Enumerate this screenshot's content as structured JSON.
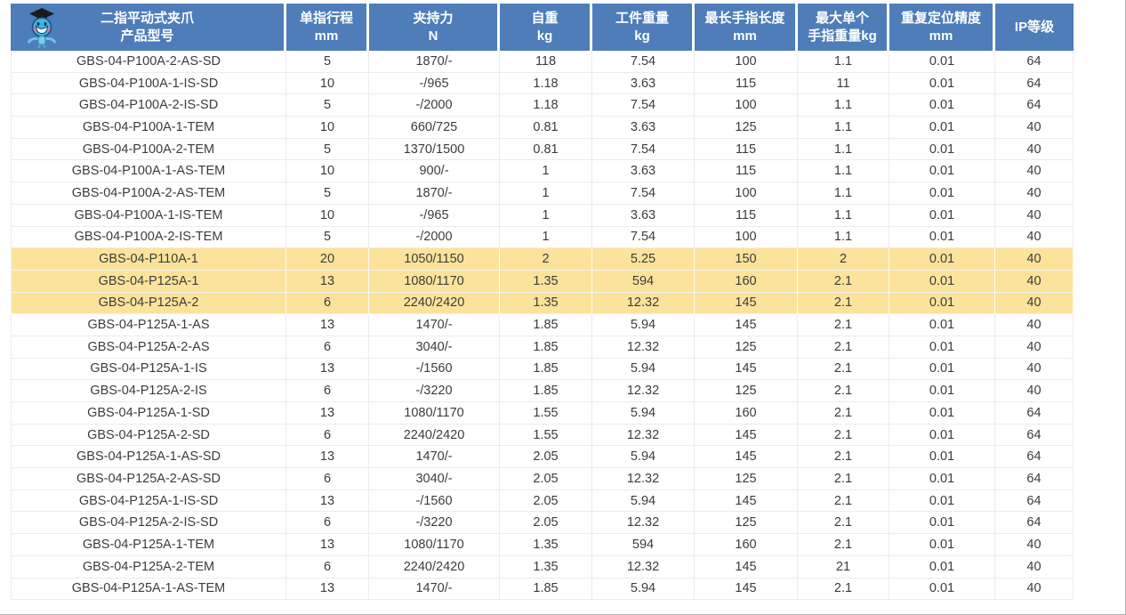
{
  "theme": {
    "header_bg": "#4e7db9",
    "header_text": "#ffffff",
    "highlight_bg": "#fce39b",
    "grid_color": "#ececec",
    "body_text": "#3c3c3c"
  },
  "icons": {
    "header_logo": "mascot-graduate-robot-icon"
  },
  "table": {
    "columns": [
      {
        "id": "model",
        "line1": "二指平动式夹爪",
        "line2": "产品型号"
      },
      {
        "id": "stroke",
        "line1": "单指行程",
        "line2": "mm"
      },
      {
        "id": "force",
        "line1": "夹持力",
        "line2": "N"
      },
      {
        "id": "self-weight",
        "line1": "自重",
        "line2": "kg"
      },
      {
        "id": "workpiece-weight",
        "line1": "工件重量",
        "line2": "kg"
      },
      {
        "id": "max-finger-length",
        "line1": "最长手指长度",
        "line2": "mm"
      },
      {
        "id": "max-finger-weight",
        "line1": "最大单个",
        "line2": "手指重量kg"
      },
      {
        "id": "repeat-accuracy",
        "line1": "重复定位精度",
        "line2": "mm"
      },
      {
        "id": "ip-rating",
        "line1": "IP等级",
        "line2": ""
      }
    ],
    "rows": [
      {
        "highlighted": false,
        "cells": [
          "GBS-04-P100A-2-AS-SD",
          "5",
          "1870/-",
          "118",
          "7.54",
          "100",
          "1.1",
          "0.01",
          "64"
        ]
      },
      {
        "highlighted": false,
        "cells": [
          "GBS-04-P100A-1-IS-SD",
          "10",
          "-/965",
          "1.18",
          "3.63",
          "115",
          "11",
          "0.01",
          "64"
        ]
      },
      {
        "highlighted": false,
        "cells": [
          "GBS-04-P100A-2-IS-SD",
          "5",
          "-/2000",
          "1.18",
          "7.54",
          "100",
          "1.1",
          "0.01",
          "64"
        ]
      },
      {
        "highlighted": false,
        "cells": [
          "GBS-04-P100A-1-TEM",
          "10",
          "660/725",
          "0.81",
          "3.63",
          "125",
          "1.1",
          "0.01",
          "40"
        ]
      },
      {
        "highlighted": false,
        "cells": [
          "GBS-04-P100A-2-TEM",
          "5",
          "1370/1500",
          "0.81",
          "7.54",
          "115",
          "1.1",
          "0.01",
          "40"
        ]
      },
      {
        "highlighted": false,
        "cells": [
          "GBS-04-P100A-1-AS-TEM",
          "10",
          "900/-",
          "1",
          "3.63",
          "115",
          "1.1",
          "0.01",
          "40"
        ]
      },
      {
        "highlighted": false,
        "cells": [
          "GBS-04-P100A-2-AS-TEM",
          "5",
          "1870/-",
          "1",
          "7.54",
          "100",
          "1.1",
          "0.01",
          "40"
        ]
      },
      {
        "highlighted": false,
        "cells": [
          "GBS-04-P100A-1-IS-TEM",
          "10",
          "-/965",
          "1",
          "3.63",
          "115",
          "1.1",
          "0.01",
          "40"
        ]
      },
      {
        "highlighted": false,
        "cells": [
          "GBS-04-P100A-2-IS-TEM",
          "5",
          "-/2000",
          "1",
          "7.54",
          "100",
          "1.1",
          "0.01",
          "40"
        ]
      },
      {
        "highlighted": true,
        "cells": [
          "GBS-04-P110A-1",
          "20",
          "1050/1150",
          "2",
          "5.25",
          "150",
          "2",
          "0.01",
          "40"
        ]
      },
      {
        "highlighted": true,
        "cells": [
          "GBS-04-P125A-1",
          "13",
          "1080/1170",
          "1.35",
          "594",
          "160",
          "2.1",
          "0.01",
          "40"
        ]
      },
      {
        "highlighted": true,
        "cells": [
          "GBS-04-P125A-2",
          "6",
          "2240/2420",
          "1.35",
          "12.32",
          "145",
          "2.1",
          "0.01",
          "40"
        ]
      },
      {
        "highlighted": false,
        "cells": [
          "GBS-04-P125A-1-AS",
          "13",
          "1470/-",
          "1.85",
          "5.94",
          "145",
          "2.1",
          "0.01",
          "40"
        ]
      },
      {
        "highlighted": false,
        "cells": [
          "GBS-04-P125A-2-AS",
          "6",
          "3040/-",
          "1.85",
          "12.32",
          "125",
          "2.1",
          "0.01",
          "40"
        ]
      },
      {
        "highlighted": false,
        "cells": [
          "GBS-04-P125A-1-IS",
          "13",
          "-/1560",
          "1.85",
          "5.94",
          "145",
          "2.1",
          "0.01",
          "40"
        ]
      },
      {
        "highlighted": false,
        "cells": [
          "GBS-04-P125A-2-IS",
          "6",
          "-/3220",
          "1.85",
          "12.32",
          "125",
          "2.1",
          "0.01",
          "40"
        ]
      },
      {
        "highlighted": false,
        "cells": [
          "GBS-04-P125A-1-SD",
          "13",
          "1080/1170",
          "1.55",
          "5.94",
          "160",
          "2.1",
          "0.01",
          "64"
        ]
      },
      {
        "highlighted": false,
        "cells": [
          "GBS-04-P125A-2-SD",
          "6",
          "2240/2420",
          "1.55",
          "12.32",
          "145",
          "2.1",
          "0.01",
          "64"
        ]
      },
      {
        "highlighted": false,
        "cells": [
          "GBS-04-P125A-1-AS-SD",
          "13",
          "1470/-",
          "2.05",
          "5.94",
          "145",
          "2.1",
          "0.01",
          "64"
        ]
      },
      {
        "highlighted": false,
        "cells": [
          "GBS-04-P125A-2-AS-SD",
          "6",
          "3040/-",
          "2.05",
          "12.32",
          "125",
          "2.1",
          "0.01",
          "64"
        ]
      },
      {
        "highlighted": false,
        "cells": [
          "GBS-04-P125A-1-IS-SD",
          "13",
          "-/1560",
          "2.05",
          "5.94",
          "145",
          "2.1",
          "0.01",
          "64"
        ]
      },
      {
        "highlighted": false,
        "cells": [
          "GBS-04-P125A-2-IS-SD",
          "6",
          "-/3220",
          "2.05",
          "12.32",
          "125",
          "2.1",
          "0.01",
          "64"
        ]
      },
      {
        "highlighted": false,
        "cells": [
          "GBS-04-P125A-1-TEM",
          "13",
          "1080/1170",
          "1.35",
          "594",
          "160",
          "2.1",
          "0.01",
          "40"
        ]
      },
      {
        "highlighted": false,
        "cells": [
          "GBS-04-P125A-2-TEM",
          "6",
          "2240/2420",
          "1.35",
          "12.32",
          "145",
          "21",
          "0.01",
          "40"
        ]
      },
      {
        "highlighted": false,
        "cells": [
          "GBS-04-P125A-1-AS-TEM",
          "13",
          "1470/-",
          "1.85",
          "5.94",
          "145",
          "2.1",
          "0.01",
          "40"
        ]
      }
    ]
  }
}
